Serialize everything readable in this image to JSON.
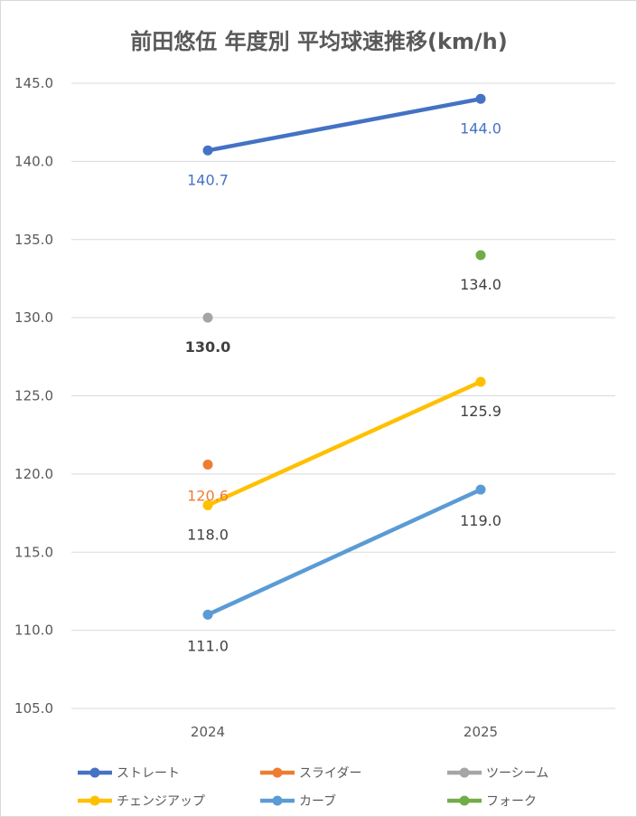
{
  "chart_data": {
    "type": "line",
    "title": "前田悠伍 年度別 平均球速推移(km/h)",
    "categories": [
      "2024",
      "2025"
    ],
    "ylim": [
      105,
      145
    ],
    "yticks": [
      105,
      110,
      115,
      120,
      125,
      130,
      135,
      140,
      145
    ],
    "ytick_labels": [
      "105.0",
      "110.0",
      "115.0",
      "120.0",
      "125.0",
      "130.0",
      "135.0",
      "140.0",
      "145.0"
    ],
    "grid": true,
    "legend_position": "bottom",
    "series": [
      {
        "name": "ストレート",
        "color": "#4472C4",
        "values": [
          140.7,
          144.0
        ],
        "labels": [
          "140.7",
          "144.0"
        ],
        "label_color": "#4472C4",
        "label_bold": false
      },
      {
        "name": "スライダー",
        "color": "#ED7D31",
        "values": [
          120.6,
          null
        ],
        "labels": [
          "120.6",
          ""
        ],
        "label_color": "#ED7D31",
        "label_bold": false
      },
      {
        "name": "ツーシーム",
        "color": "#A5A5A5",
        "values": [
          130.0,
          null
        ],
        "labels": [
          "130.0",
          ""
        ],
        "label_color": "#404040",
        "label_bold": true
      },
      {
        "name": "チェンジアップ",
        "color": "#FFC000",
        "values": [
          118.0,
          125.9
        ],
        "labels": [
          "118.0",
          "125.9"
        ],
        "label_color": "#404040",
        "label_bold": false
      },
      {
        "name": "カーブ",
        "color": "#5B9BD5",
        "values": [
          111.0,
          119.0
        ],
        "labels": [
          "111.0",
          "119.0"
        ],
        "label_color": "#404040",
        "label_bold": false
      },
      {
        "name": "フォーク",
        "color": "#70AD47",
        "values": [
          null,
          134.0
        ],
        "labels": [
          "",
          "134.0"
        ],
        "label_color": "#404040",
        "label_bold": false
      }
    ]
  }
}
